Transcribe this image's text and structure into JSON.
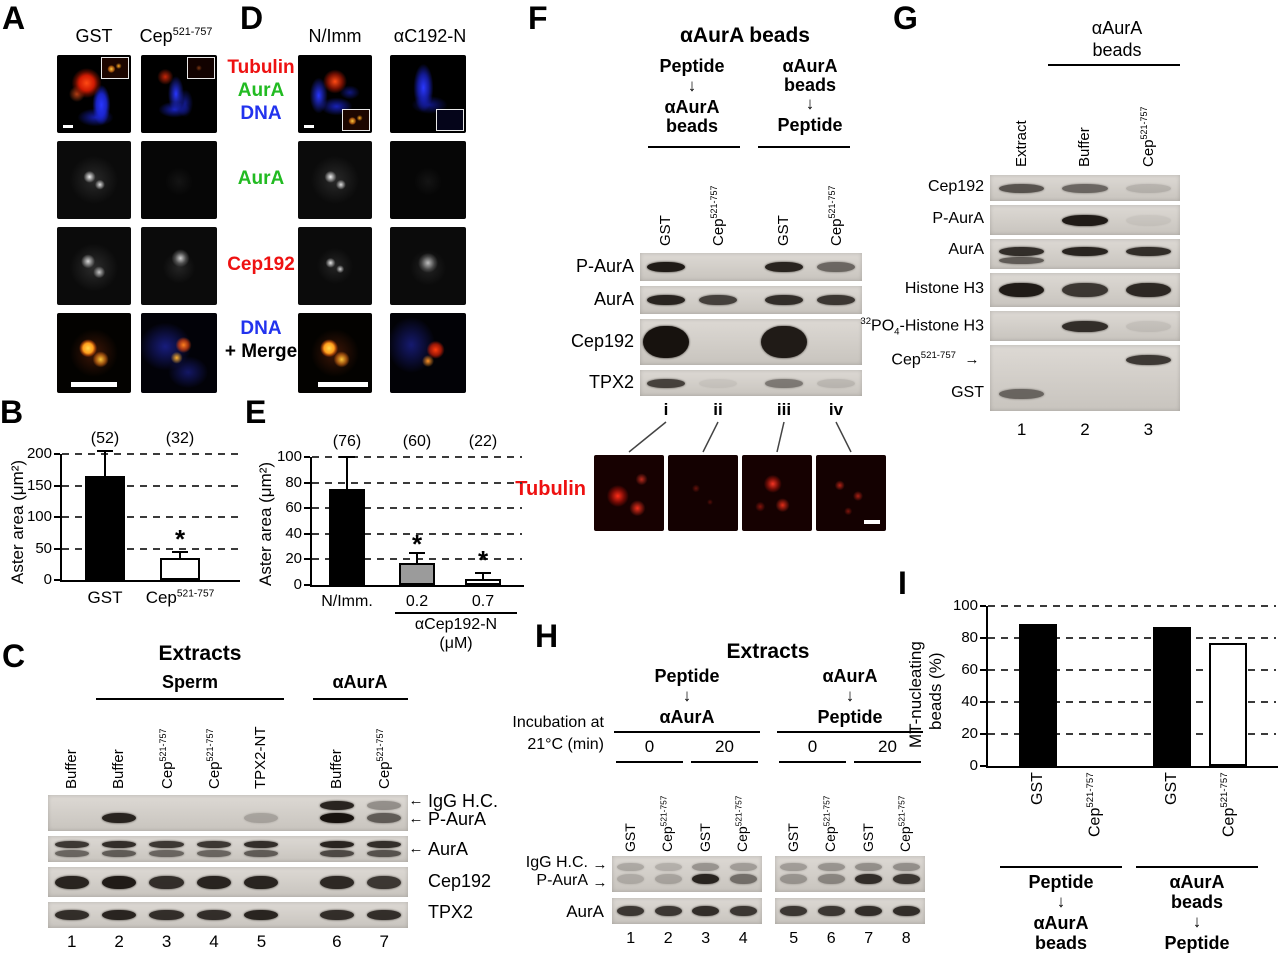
{
  "colors": {
    "fluor_red": "#ee1111",
    "fluor_green": "#22bb22",
    "fluor_blue": "#2233ee"
  },
  "panelA": {
    "label": "A",
    "columns": [
      "GST",
      "Cep^{521-757}"
    ]
  },
  "panelD": {
    "label": "D",
    "columns": [
      "N/Imm",
      "αC192-N"
    ]
  },
  "row_labels": {
    "row1": [
      {
        "text": "Tubulin",
        "color": "#ee1111"
      },
      {
        "text": "AurA",
        "color": "#22bb22"
      },
      {
        "text": "DNA",
        "color": "#2233ee"
      }
    ],
    "row2": [
      {
        "text": "AurA",
        "color": "#22bb22"
      }
    ],
    "row3": [
      {
        "text": "Cep192",
        "color": "#ee1111"
      }
    ],
    "row4": [
      {
        "text": "DNA",
        "color": "#2233ee"
      },
      {
        "text": "+ Merge",
        "color": "#000000"
      }
    ]
  },
  "panelB": {
    "label": "B",
    "chart": {
      "type": "bar",
      "ylabel": "Aster area (μm²)",
      "ylim": [
        0,
        200
      ],
      "yticks": [
        200,
        150,
        100,
        50,
        0
      ],
      "bars": [
        {
          "label": "GST",
          "value": 165,
          "err": 40,
          "count": "(52)",
          "fill": "#000000",
          "sig": false
        },
        {
          "label": "Cep^{521-757}",
          "value": 35,
          "err": 10,
          "count": "(32)",
          "fill": "#ffffff",
          "sig": true
        }
      ]
    }
  },
  "panelC": {
    "label": "C",
    "title": "Extracts",
    "groups": [
      {
        "label": "Sperm",
        "lanes": [
          2,
          5
        ]
      },
      {
        "label": "αAurA",
        "lanes": [
          6,
          7
        ]
      }
    ],
    "lanes": [
      "Buffer",
      "Buffer",
      "Cep^{521-757}",
      "Cep^{521-757}",
      "TPX2-NT",
      "Buffer",
      "Cep^{521-757}"
    ],
    "strips": [
      {
        "labels": [
          {
            "text": "IgG H.C.",
            "arrow": true
          },
          {
            "text": "P-AurA",
            "arrow": true
          }
        ],
        "rows": [
          [
            0,
            0,
            0,
            0,
            0,
            0.9,
            0.35
          ],
          [
            0,
            0.9,
            0,
            0,
            0.22,
            1,
            0.6
          ]
        ]
      },
      {
        "labels": [
          {
            "text": "AurA",
            "arrow": true
          }
        ],
        "rows": [
          [
            0.8,
            0.85,
            0.8,
            0.8,
            0.85,
            0.9,
            0.85
          ],
          [
            0.55,
            0.6,
            0.55,
            0.55,
            0.6,
            0.7,
            0.65
          ]
        ]
      },
      {
        "labels": [
          {
            "text": "Cep192",
            "arrow": false
          }
        ],
        "rows": [
          [
            0.9,
            0.95,
            0.85,
            0.9,
            0.9,
            0.88,
            0.8
          ]
        ]
      },
      {
        "labels": [
          {
            "text": "TPX2",
            "arrow": false
          }
        ],
        "rows": [
          [
            0.85,
            0.9,
            0.85,
            0.85,
            0.9,
            0.85,
            0.85
          ]
        ]
      }
    ],
    "lane_numbers": [
      "1",
      "2",
      "3",
      "4",
      "5",
      "6",
      "7"
    ]
  },
  "panelE": {
    "label": "E",
    "chart": {
      "type": "bar",
      "ylabel": "Aster area (μm²)",
      "ylim": [
        0,
        100
      ],
      "yticks": [
        100,
        80,
        60,
        40,
        20,
        0
      ],
      "bars": [
        {
          "label": "N/Imm.",
          "value": 75,
          "err": 25,
          "count": "(76)",
          "fill": "#000000",
          "sig": false
        },
        {
          "label": "0.2",
          "value": 17,
          "err": 8,
          "count": "(60)",
          "fill": "#9b9b9b",
          "sig": true
        },
        {
          "label": "0.7",
          "value": 5,
          "err": 4,
          "count": "(22)",
          "fill": "#ffffff",
          "sig": true
        }
      ],
      "xgroup": {
        "label_lines": [
          "αCep192-N",
          "(μM)"
        ],
        "bars": [
          1,
          2
        ]
      }
    }
  },
  "panelF": {
    "label": "F",
    "title": "αAurA beads",
    "flow_left": {
      "first": [
        "Peptide"
      ],
      "second": [
        "αAurA",
        "beads"
      ]
    },
    "flow_right": {
      "first": [
        "αAurA",
        "beads"
      ],
      "second": [
        "Peptide"
      ]
    },
    "lanes": [
      "GST",
      "Cep^{521-757}",
      "GST",
      "Cep^{521-757}"
    ],
    "strips": [
      {
        "label": "P-AurA",
        "rows": [
          [
            0.95,
            0,
            0.9,
            0.55
          ]
        ]
      },
      {
        "label": "AurA",
        "rows": [
          [
            0.9,
            0.75,
            0.85,
            0.8
          ]
        ]
      },
      {
        "label": "Cep192",
        "rows": [
          [
            1,
            0,
            0.95,
            0
          ]
        ]
      },
      {
        "label": "TPX2",
        "rows": [
          [
            0.75,
            0.06,
            0.45,
            0.12
          ]
        ]
      }
    ],
    "image_ids": [
      "i",
      "ii",
      "iii",
      "iv"
    ],
    "tubulin_label": "Tubulin"
  },
  "panelG": {
    "label": "G",
    "beads_header": [
      "αAurA",
      "beads"
    ],
    "lanes": [
      "Extract",
      "Buffer",
      "Cep^{521-757}"
    ],
    "rows": [
      {
        "label": "Cep192",
        "bands": [
          0.65,
          0.55,
          0.15
        ]
      },
      {
        "label": "P-AurA",
        "bands": [
          0,
          0.95,
          0.05
        ]
      },
      {
        "label": "AurA",
        "bands": [
          0.85,
          0.9,
          0.85
        ],
        "bands2": [
          0.6,
          0,
          0
        ]
      },
      {
        "label": "Histone H3",
        "bands": [
          0.95,
          0.8,
          0.88
        ]
      },
      {
        "label": "^{32}PO_{4}-Histone H3",
        "bands": [
          0,
          0.85,
          0.08
        ]
      }
    ],
    "tag_strip": {
      "rows": [
        {
          "label": "Cep^{521-757}",
          "arrow": true,
          "bands": [
            0,
            0,
            0.8
          ]
        },
        {
          "label": "GST",
          "arrow": false,
          "bands": [
            0.55,
            0,
            0
          ]
        }
      ]
    },
    "lane_numbers": [
      "1",
      "2",
      "3"
    ]
  },
  "panelH": {
    "label": "H",
    "title": "Extracts",
    "flow_left": {
      "top": "Peptide",
      "bottom": "αAurA"
    },
    "flow_right": {
      "top": "αAurA",
      "bottom": "Peptide"
    },
    "incubation_lines": [
      "Incubation at",
      "21°C (min)"
    ],
    "times": [
      "0",
      "20",
      "0",
      "20"
    ],
    "lanes": [
      "GST",
      "Cep^{521-757}",
      "GST",
      "Cep^{521-757}",
      "GST",
      "Cep^{521-757}",
      "GST",
      "Cep^{521-757}"
    ],
    "strips": [
      {
        "labels": [
          {
            "text": "IgG H.C.",
            "arrow": true
          },
          {
            "text": "P-AurA",
            "arrow": true
          }
        ],
        "rows": [
          [
            0.22,
            0.18,
            0.32,
            0.28,
            0.28,
            0.32,
            0.35,
            0.35
          ],
          [
            0.18,
            0.22,
            0.9,
            0.5,
            0.3,
            0.38,
            0.85,
            0.8
          ]
        ]
      },
      {
        "labels": [
          {
            "text": "AurA",
            "arrow": false
          }
        ],
        "rows": [
          [
            0.8,
            0.8,
            0.85,
            0.8,
            0.8,
            0.8,
            0.85,
            0.85
          ]
        ]
      }
    ],
    "lane_numbers": [
      "1",
      "2",
      "3",
      "4",
      "5",
      "6",
      "7",
      "8"
    ]
  },
  "panelI": {
    "label": "I",
    "chart": {
      "type": "bar",
      "ylabel_lines": [
        "MT-nucleating",
        "beads (%)"
      ],
      "ylim": [
        0,
        100
      ],
      "yticks": [
        100,
        80,
        60,
        40,
        20,
        0
      ],
      "bars": [
        {
          "label": "GST",
          "value": 89,
          "fill": "#000000"
        },
        {
          "label": "Cep^{521-757}",
          "value": 0,
          "fill": "#000000"
        },
        {
          "label": "GST",
          "value": 87,
          "fill": "#000000"
        },
        {
          "label": "Cep^{521-757}",
          "value": 77,
          "fill": "#ffffff"
        }
      ],
      "groups": [
        {
          "first": [
            "Peptide"
          ],
          "second": [
            "αAurA",
            "beads"
          ]
        },
        {
          "first": [
            "αAurA",
            "beads"
          ],
          "second": [
            "Peptide"
          ]
        }
      ]
    }
  }
}
